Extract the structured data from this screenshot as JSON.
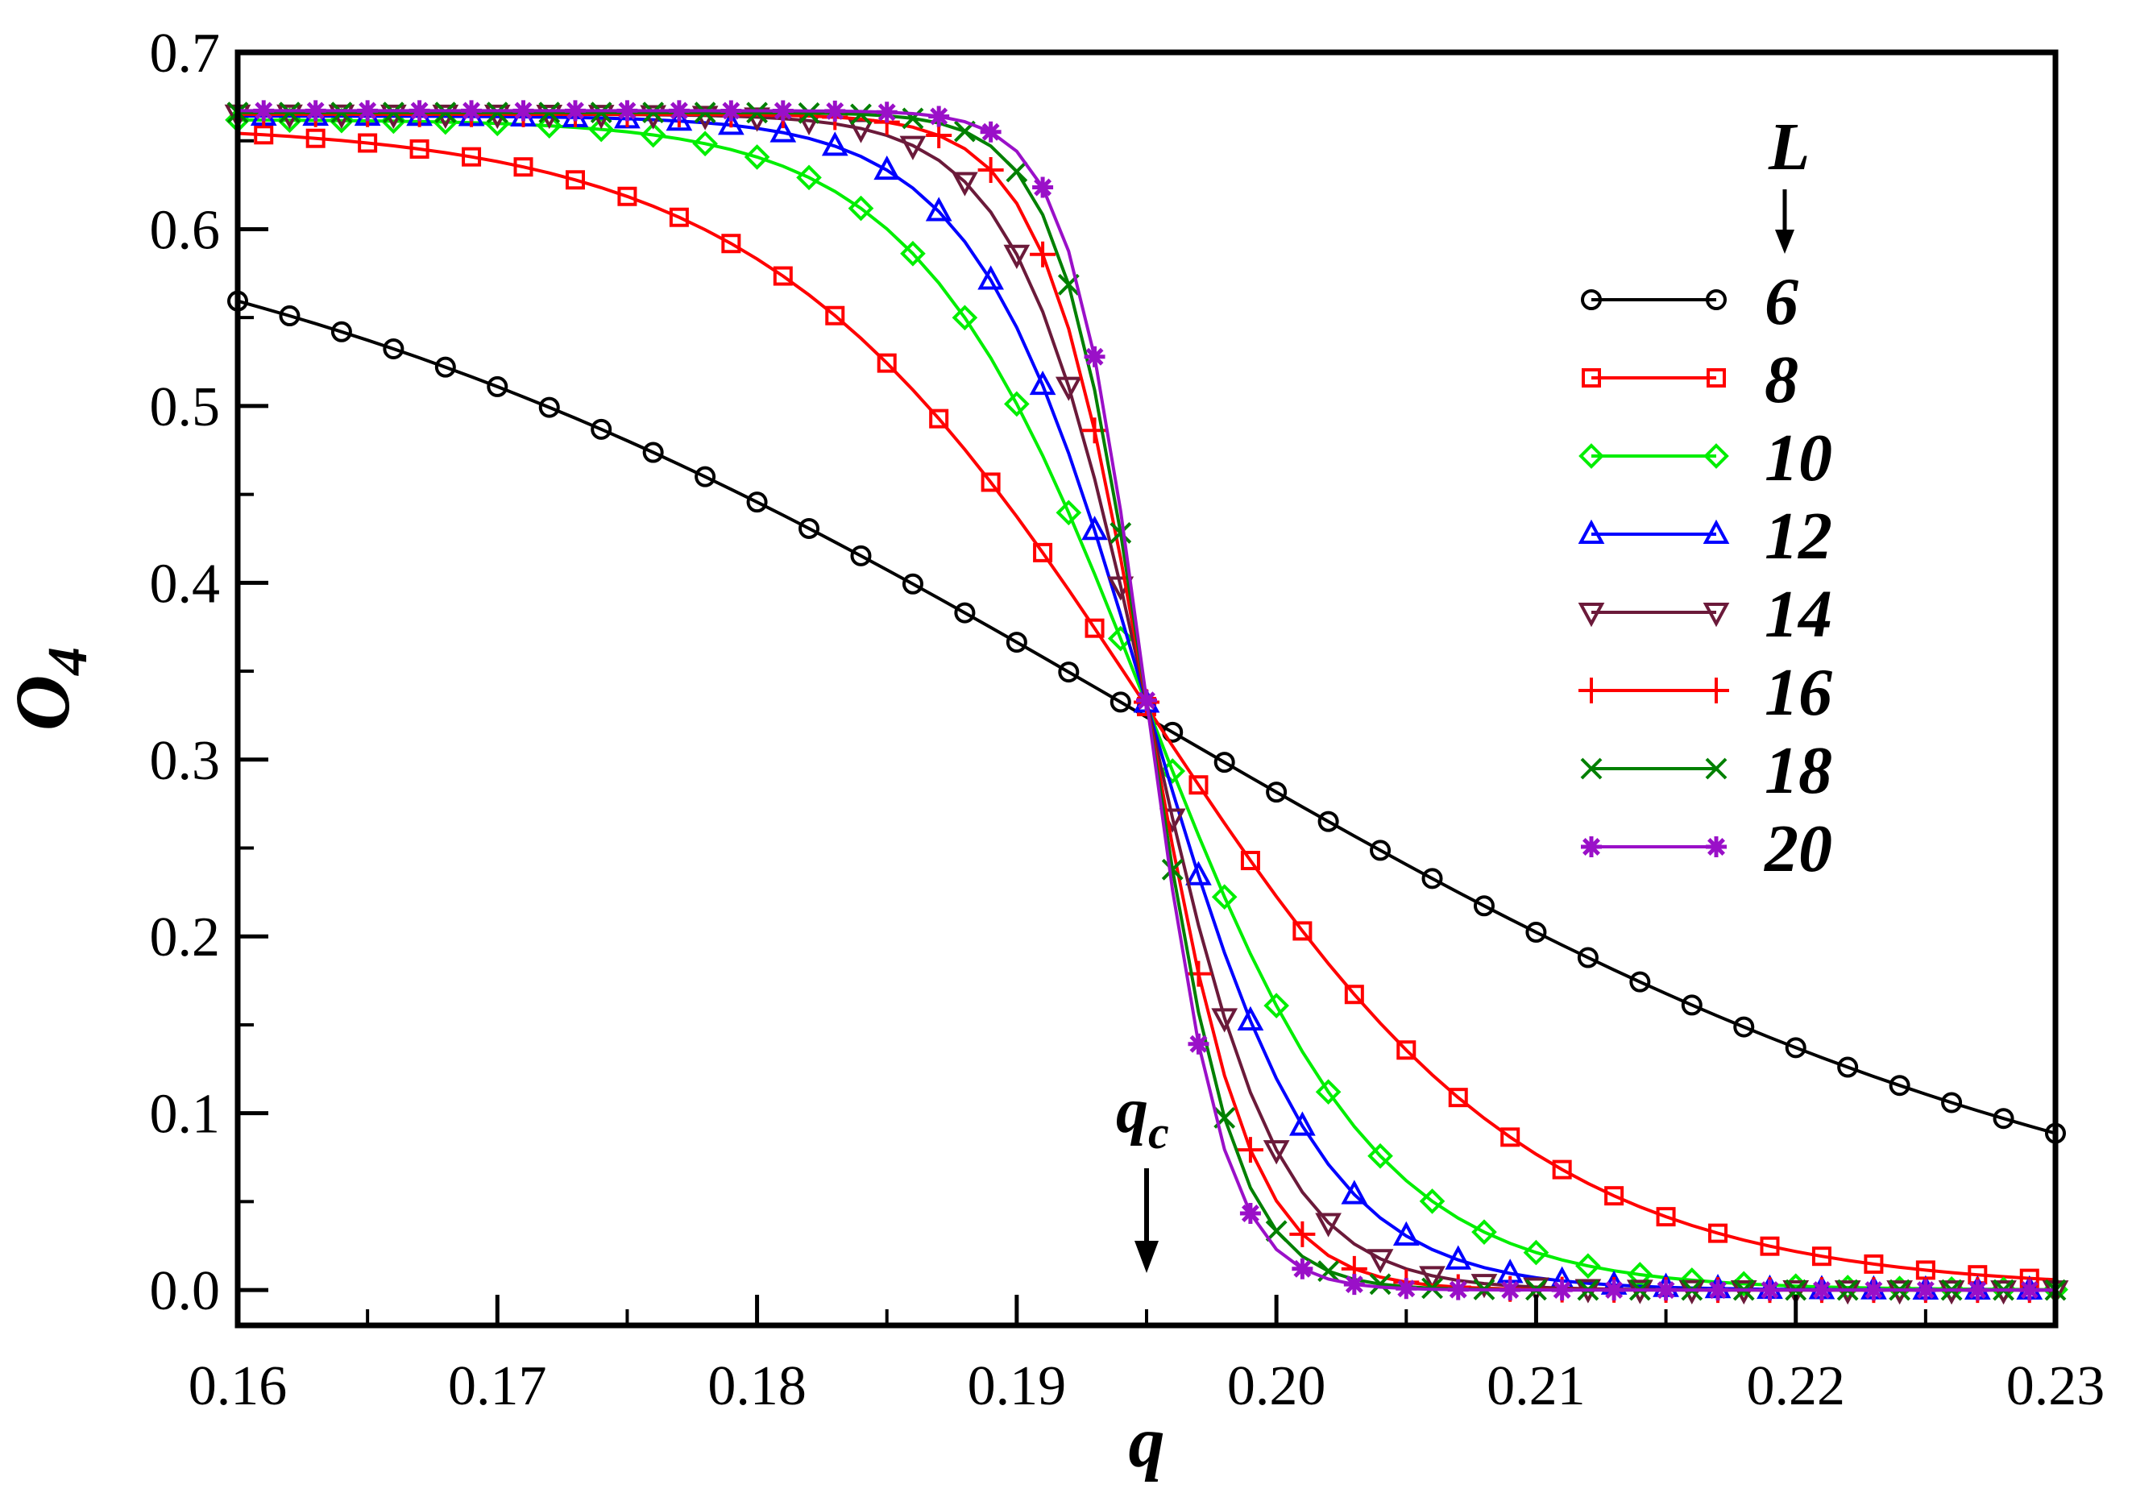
{
  "chart_data": {
    "type": "line",
    "title": "",
    "xlabel": "q",
    "ylabel": "O",
    "ylabel_subscript": "4",
    "xlim": [
      0.16,
      0.23
    ],
    "ylim": [
      -0.02,
      0.7
    ],
    "x_ticks": [
      0.16,
      0.17,
      0.18,
      0.19,
      0.2,
      0.21,
      0.22,
      0.23
    ],
    "x_tick_labels": [
      "0.16",
      "0.17",
      "0.18",
      "0.19",
      "0.20",
      "0.21",
      "0.22",
      "0.23"
    ],
    "y_ticks": [
      0.0,
      0.1,
      0.2,
      0.3,
      0.4,
      0.5,
      0.6,
      0.7
    ],
    "y_tick_labels": [
      "0.0",
      "0.1",
      "0.2",
      "0.3",
      "0.4",
      "0.5",
      "0.6",
      "0.7"
    ],
    "grid": false,
    "legend_title": "L",
    "legend_position": "right",
    "annotation": {
      "text": "q",
      "subscript": "c",
      "x": 0.195
    },
    "series": [
      {
        "name": "6",
        "color": "#000000",
        "marker": "circle",
        "width": 0.019,
        "upper": 0.648,
        "lower": 0.0
      },
      {
        "name": "8",
        "color": "#ff0000",
        "marker": "square",
        "width": 0.0074,
        "upper": 0.66,
        "lower": 0.0
      },
      {
        "name": "10",
        "color": "#00ee00",
        "marker": "diamond",
        "width": 0.0044,
        "upper": 0.662,
        "lower": 0.0
      },
      {
        "name": "12",
        "color": "#0000ff",
        "marker": "triangle-up",
        "width": 0.0033,
        "upper": 0.664,
        "lower": 0.0
      },
      {
        "name": "14",
        "color": "#6b1a3a",
        "marker": "triangle-down",
        "width": 0.0025,
        "upper": 0.665,
        "lower": 0.0
      },
      {
        "name": "16",
        "color": "#ff0000",
        "marker": "plus",
        "width": 0.002,
        "upper": 0.665,
        "lower": 0.0
      },
      {
        "name": "18",
        "color": "#008000",
        "marker": "cross",
        "width": 0.0017,
        "upper": 0.666,
        "lower": 0.0
      },
      {
        "name": "20",
        "color": "#9a10c8",
        "marker": "star",
        "width": 0.0015,
        "upper": 0.667,
        "lower": 0.0
      }
    ]
  }
}
